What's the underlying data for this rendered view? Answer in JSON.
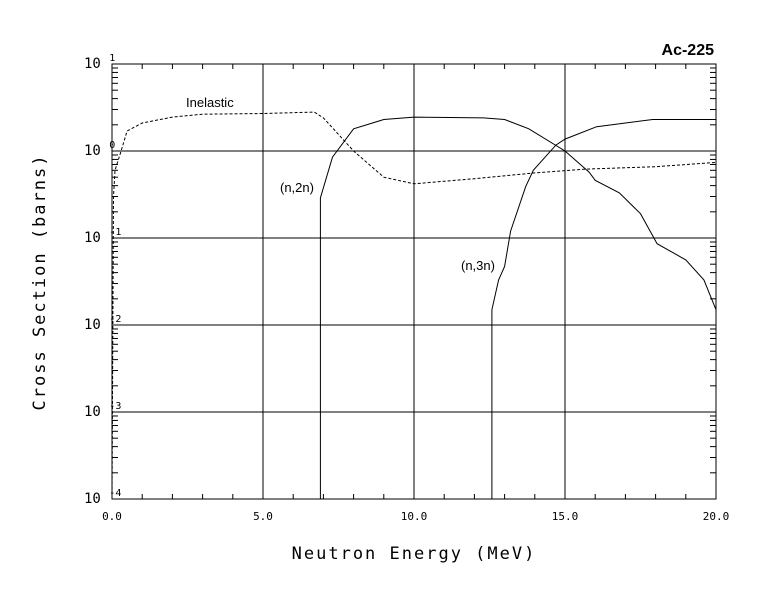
{
  "chart_data": {
    "type": "line",
    "title": "Ac-225",
    "xlabel": "Neutron Energy (MeV)",
    "ylabel": "Cross Section (barns)",
    "xlim": [
      0,
      20
    ],
    "ylim": [
      0.0001,
      10
    ],
    "yscale": "log",
    "grid": true,
    "x_ticks": [
      "0.0",
      "5.0",
      "10.0",
      "15.0",
      "20.0"
    ],
    "x_tick_values": [
      0,
      5,
      10,
      15,
      20
    ],
    "y_ticks": [
      {
        "base": "10",
        "exp": "1"
      },
      {
        "base": "10",
        "exp": "0"
      },
      {
        "base": "10",
        "exp": "-1"
      },
      {
        "base": "10",
        "exp": "-2"
      },
      {
        "base": "10",
        "exp": "-3"
      },
      {
        "base": "10",
        "exp": "-4"
      }
    ],
    "y_tick_values": [
      10,
      1,
      0.1,
      0.01,
      0.001,
      0.0001
    ],
    "series": [
      {
        "name": "Inelastic",
        "style": "dashed",
        "x": [
          0.0,
          0.05,
          0.1,
          0.3,
          0.5,
          1,
          2,
          3,
          5,
          6.7,
          7.0,
          8.0,
          9.0,
          10.0,
          12.0,
          14.0,
          15.7,
          18.0,
          20.0
        ],
        "y": [
          0.0001,
          0.3,
          0.6,
          1.0,
          1.7,
          2.1,
          2.45,
          2.65,
          2.7,
          2.8,
          2.4,
          1.0,
          0.5,
          0.42,
          0.48,
          0.56,
          0.62,
          0.66,
          0.74
        ]
      },
      {
        "name": "(n,2n)",
        "style": "solid",
        "x": [
          6.9,
          6.9,
          7.3,
          8.0,
          9.0,
          10.0,
          12.3,
          13.0,
          13.8,
          15.0,
          15.8,
          16.0,
          16.8,
          17.5,
          18.05,
          19.0,
          19.6,
          20.0
        ],
        "y": [
          0.0001,
          0.29,
          0.85,
          1.8,
          2.3,
          2.45,
          2.4,
          2.3,
          1.8,
          1.0,
          0.57,
          0.46,
          0.33,
          0.19,
          0.086,
          0.056,
          0.033,
          0.015
        ]
      },
      {
        "name": "(n,3n)",
        "style": "solid",
        "x": [
          12.58,
          12.58,
          12.8,
          13.0,
          13.2,
          13.7,
          13.95,
          14.7,
          15.0,
          16.05,
          17.9,
          20.0
        ],
        "y": [
          0.0001,
          0.015,
          0.033,
          0.047,
          0.12,
          0.39,
          0.6,
          1.17,
          1.37,
          1.9,
          2.3,
          2.3
        ]
      }
    ],
    "annotations": [
      "Inelastic",
      "(n,2n)",
      "(n,3n)"
    ]
  }
}
